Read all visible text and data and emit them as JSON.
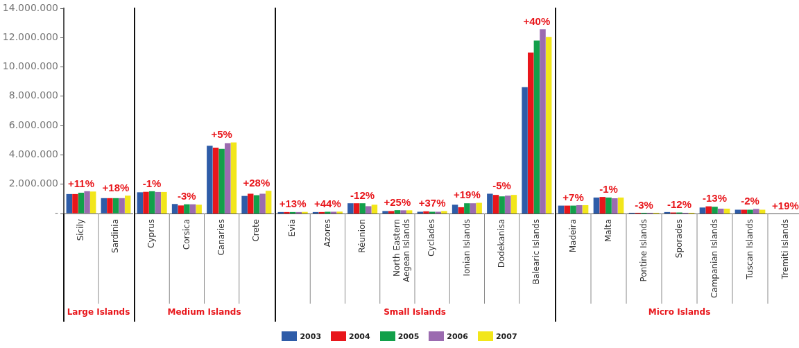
{
  "chart_data": [
    {
      "type": "bar",
      "xlabel": "Large Islands",
      "categories": [
        "Sicily",
        "Sardinia"
      ],
      "series": [
        {
          "name": "2003",
          "color": "#2e5ca8",
          "values": [
            1330000,
            1050000
          ]
        },
        {
          "name": "2004",
          "color": "#e8161b",
          "values": [
            1330000,
            1050000
          ]
        },
        {
          "name": "2005",
          "color": "#12a04a",
          "values": [
            1420000,
            1050000
          ]
        },
        {
          "name": "2006",
          "color": "#9b6bb0",
          "values": [
            1520000,
            1050000
          ]
        },
        {
          "name": "2007",
          "color": "#f2e61a",
          "values": [
            1500000,
            1220000
          ]
        }
      ],
      "ylim": [
        0,
        14000000
      ],
      "yticks": [
        {
          "value": 0,
          "label": "-"
        },
        {
          "value": 2000000,
          "label": "2.000.000"
        },
        {
          "value": 4000000,
          "label": "4.000.000"
        },
        {
          "value": 6000000,
          "label": "6.000.000"
        },
        {
          "value": 8000000,
          "label": "8.000.000"
        },
        {
          "value": 10000000,
          "label": "10.000.000"
        },
        {
          "value": 12000000,
          "label": "12.000.000"
        },
        {
          "value": 14000000,
          "label": "14.000.000"
        }
      ],
      "annotations": [
        "+11%",
        "+18%"
      ],
      "grid": false,
      "legend": "bottom"
    },
    {
      "type": "bar",
      "xlabel": "Medium Islands",
      "categories": [
        "Cyprus",
        "Corsica",
        "Canaries",
        "Crete"
      ],
      "series": [
        {
          "name": "2003",
          "color": "#2e5ca8",
          "values": [
            1450000,
            650000,
            4620000,
            1200000
          ]
        },
        {
          "name": "2004",
          "color": "#e8161b",
          "values": [
            1480000,
            550000,
            4490000,
            1350000
          ]
        },
        {
          "name": "2005",
          "color": "#12a04a",
          "values": [
            1520000,
            630000,
            4410000,
            1250000
          ]
        },
        {
          "name": "2006",
          "color": "#9b6bb0",
          "values": [
            1470000,
            630000,
            4800000,
            1350000
          ]
        },
        {
          "name": "2007",
          "color": "#f2e61a",
          "values": [
            1470000,
            600000,
            4850000,
            1550000
          ]
        }
      ],
      "ylim": [
        0,
        14000000
      ],
      "annotations": [
        "-1%",
        "-3%",
        "+5%",
        "+28%"
      ],
      "grid": false,
      "tick_labels": "x"
    },
    {
      "type": "bar",
      "xlabel": "Small Islands",
      "categories": [
        "Evia",
        "Azores",
        "Réunion",
        "North Eastern Aegean Islands",
        "Cyclades",
        "Ionian Islands",
        "Dodekanisa",
        "Balearic Islands"
      ],
      "series": [
        {
          "name": "2003",
          "color": "#2e5ca8",
          "values": [
            100000,
            100000,
            700000,
            170000,
            120000,
            600000,
            1350000,
            8620000
          ]
        },
        {
          "name": "2004",
          "color": "#e8161b",
          "values": [
            100000,
            100000,
            700000,
            170000,
            150000,
            430000,
            1270000,
            10990000
          ]
        },
        {
          "name": "2005",
          "color": "#12a04a",
          "values": [
            100000,
            120000,
            700000,
            230000,
            120000,
            700000,
            1170000,
            11800000
          ]
        },
        {
          "name": "2006",
          "color": "#9b6bb0",
          "values": [
            100000,
            120000,
            500000,
            220000,
            120000,
            700000,
            1220000,
            12570000
          ]
        },
        {
          "name": "2007",
          "color": "#f2e61a",
          "values": [
            110000,
            130000,
            600000,
            220000,
            170000,
            730000,
            1270000,
            12050000
          ]
        }
      ],
      "ylim": [
        0,
        14000000
      ],
      "annotations": [
        "+13%",
        "+44%",
        "-12%",
        "+25%",
        "+37%",
        "+19%",
        "-5%",
        "+40%"
      ],
      "grid": false,
      "tick_labels": "x"
    },
    {
      "type": "bar",
      "xlabel": "Micro Islands",
      "categories": [
        "Madeira",
        "Malta",
        "Pontine Islands",
        "Sporades",
        "Campanian Islands",
        "Tuscan Islands",
        "Tremiti Islands"
      ],
      "series": [
        {
          "name": "2003",
          "color": "#2e5ca8",
          "values": [
            540000,
            1090000,
            50000,
            100000,
            410000,
            260000,
            null
          ]
        },
        {
          "name": "2004",
          "color": "#e8161b",
          "values": [
            540000,
            1130000,
            50000,
            70000,
            490000,
            260000,
            null
          ]
        },
        {
          "name": "2005",
          "color": "#12a04a",
          "values": [
            540000,
            1090000,
            50000,
            70000,
            460000,
            260000,
            null
          ]
        },
        {
          "name": "2006",
          "color": "#9b6bb0",
          "values": [
            570000,
            1040000,
            50000,
            50000,
            330000,
            310000,
            null
          ]
        },
        {
          "name": "2007",
          "color": "#f2e61a",
          "values": [
            570000,
            1090000,
            50000,
            50000,
            330000,
            260000,
            null
          ]
        }
      ],
      "ylim": [
        0,
        14000000
      ],
      "annotations": [
        "+7%",
        "-1%",
        "-3%",
        "-12%",
        "-13%",
        "-2%",
        "+19%"
      ],
      "grid": false,
      "tick_labels": "x"
    }
  ]
}
